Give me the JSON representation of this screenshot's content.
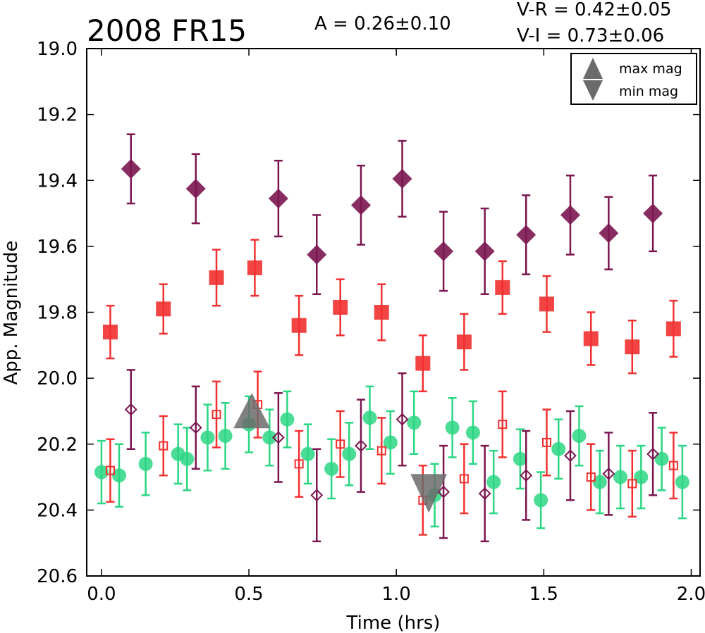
{
  "chart_data": {
    "type": "scatter",
    "title": "2008 FR15",
    "xlabel": "Time (hrs)",
    "ylabel": "App. Magnitude",
    "xlim": [
      -0.05,
      2.03
    ],
    "ylim": [
      20.6,
      19.0
    ],
    "y_inverted": true,
    "grid": false,
    "xticks": [
      "0.0",
      "0.5",
      "1.0",
      "1.5",
      "2.0"
    ],
    "xtick_values": [
      0.0,
      0.5,
      1.0,
      1.5,
      2.0
    ],
    "yticks": [
      "19.0",
      "19.2",
      "19.4",
      "19.6",
      "19.8",
      "20.0",
      "20.2",
      "20.4",
      "20.6"
    ],
    "ytick_values": [
      19.0,
      19.2,
      19.4,
      19.6,
      19.8,
      20.0,
      20.2,
      20.4,
      20.6
    ],
    "annotations": {
      "amplitude": "A  = 0.26±0.10",
      "v_r": "V-R = 0.42±0.05",
      "v_i": "V-I  = 0.73±0.06"
    },
    "legend": {
      "placement": "top-right",
      "entries": [
        {
          "label": "max mag",
          "marker": "triangle-up"
        },
        {
          "label": "min mag",
          "marker": "triangle-down"
        }
      ]
    },
    "series": [
      {
        "marker": "diamond",
        "filled": true,
        "color": "#7b1650",
        "points": [
          {
            "x": 0.1,
            "y": 19.365,
            "err": 0.105
          },
          {
            "x": 0.32,
            "y": 19.425,
            "err": 0.105
          },
          {
            "x": 0.6,
            "y": 19.455,
            "err": 0.115
          },
          {
            "x": 0.73,
            "y": 19.625,
            "err": 0.12
          },
          {
            "x": 0.88,
            "y": 19.475,
            "err": 0.12
          },
          {
            "x": 1.02,
            "y": 19.395,
            "err": 0.115
          },
          {
            "x": 1.16,
            "y": 19.615,
            "err": 0.12
          },
          {
            "x": 1.3,
            "y": 19.615,
            "err": 0.13
          },
          {
            "x": 1.44,
            "y": 19.565,
            "err": 0.12
          },
          {
            "x": 1.59,
            "y": 19.505,
            "err": 0.12
          },
          {
            "x": 1.72,
            "y": 19.56,
            "err": 0.11
          },
          {
            "x": 1.87,
            "y": 19.5,
            "err": 0.115
          }
        ]
      },
      {
        "marker": "square",
        "filled": true,
        "color": "#f23030",
        "points": [
          {
            "x": 0.03,
            "y": 19.86,
            "err": 0.08
          },
          {
            "x": 0.21,
            "y": 19.79,
            "err": 0.075
          },
          {
            "x": 0.39,
            "y": 19.695,
            "err": 0.085
          },
          {
            "x": 0.52,
            "y": 19.665,
            "err": 0.085
          },
          {
            "x": 0.67,
            "y": 19.84,
            "err": 0.09
          },
          {
            "x": 0.81,
            "y": 19.785,
            "err": 0.085
          },
          {
            "x": 0.95,
            "y": 19.8,
            "err": 0.085
          },
          {
            "x": 1.09,
            "y": 19.955,
            "err": 0.085
          },
          {
            "x": 1.23,
            "y": 19.89,
            "err": 0.085
          },
          {
            "x": 1.36,
            "y": 19.725,
            "err": 0.08
          },
          {
            "x": 1.51,
            "y": 19.775,
            "err": 0.085
          },
          {
            "x": 1.66,
            "y": 19.88,
            "err": 0.08
          },
          {
            "x": 1.8,
            "y": 19.905,
            "err": 0.08
          },
          {
            "x": 1.94,
            "y": 19.85,
            "err": 0.085
          }
        ]
      },
      {
        "marker": "circle",
        "filled": true,
        "color": "#2bd683",
        "points": [
          {
            "x": 0.0,
            "y": 20.285,
            "err": 0.095
          },
          {
            "x": 0.06,
            "y": 20.295,
            "err": 0.095
          },
          {
            "x": 0.15,
            "y": 20.26,
            "err": 0.095
          },
          {
            "x": 0.26,
            "y": 20.23,
            "err": 0.09
          },
          {
            "x": 0.29,
            "y": 20.245,
            "err": 0.095
          },
          {
            "x": 0.36,
            "y": 20.18,
            "err": 0.1
          },
          {
            "x": 0.42,
            "y": 20.175,
            "err": 0.1
          },
          {
            "x": 0.5,
            "y": 20.14,
            "err": 0.085
          },
          {
            "x": 0.57,
            "y": 20.18,
            "err": 0.085
          },
          {
            "x": 0.63,
            "y": 20.125,
            "err": 0.085
          },
          {
            "x": 0.7,
            "y": 20.23,
            "err": 0.09
          },
          {
            "x": 0.78,
            "y": 20.275,
            "err": 0.09
          },
          {
            "x": 0.84,
            "y": 20.23,
            "err": 0.095
          },
          {
            "x": 0.91,
            "y": 20.12,
            "err": 0.095
          },
          {
            "x": 0.98,
            "y": 20.195,
            "err": 0.095
          },
          {
            "x": 1.06,
            "y": 20.135,
            "err": 0.095
          },
          {
            "x": 1.13,
            "y": 20.355,
            "err": 0.095
          },
          {
            "x": 1.19,
            "y": 20.15,
            "err": 0.09
          },
          {
            "x": 1.26,
            "y": 20.165,
            "err": 0.095
          },
          {
            "x": 1.33,
            "y": 20.315,
            "err": 0.095
          },
          {
            "x": 1.42,
            "y": 20.245,
            "err": 0.09
          },
          {
            "x": 1.49,
            "y": 20.37,
            "err": 0.085
          },
          {
            "x": 1.55,
            "y": 20.215,
            "err": 0.09
          },
          {
            "x": 1.62,
            "y": 20.175,
            "err": 0.09
          },
          {
            "x": 1.69,
            "y": 20.315,
            "err": 0.095
          },
          {
            "x": 1.76,
            "y": 20.3,
            "err": 0.095
          },
          {
            "x": 1.83,
            "y": 20.3,
            "err": 0.095
          },
          {
            "x": 1.9,
            "y": 20.245,
            "err": 0.095
          },
          {
            "x": 1.97,
            "y": 20.315,
            "err": 0.11
          }
        ]
      },
      {
        "marker": "square",
        "filled": false,
        "color": "#f23030",
        "points": [
          {
            "x": 0.03,
            "y": 20.28,
            "err": 0.095
          },
          {
            "x": 0.21,
            "y": 20.205,
            "err": 0.09
          },
          {
            "x": 0.39,
            "y": 20.11,
            "err": 0.1
          },
          {
            "x": 0.53,
            "y": 20.08,
            "err": 0.1
          },
          {
            "x": 0.67,
            "y": 20.26,
            "err": 0.1
          },
          {
            "x": 0.81,
            "y": 20.2,
            "err": 0.1
          },
          {
            "x": 0.95,
            "y": 20.22,
            "err": 0.1
          },
          {
            "x": 1.09,
            "y": 20.37,
            "err": 0.105
          },
          {
            "x": 1.23,
            "y": 20.305,
            "err": 0.105
          },
          {
            "x": 1.36,
            "y": 20.14,
            "err": 0.1
          },
          {
            "x": 1.51,
            "y": 20.195,
            "err": 0.1
          },
          {
            "x": 1.66,
            "y": 20.3,
            "err": 0.1
          },
          {
            "x": 1.8,
            "y": 20.32,
            "err": 0.1
          },
          {
            "x": 1.94,
            "y": 20.265,
            "err": 0.1
          }
        ]
      },
      {
        "marker": "diamond",
        "filled": false,
        "color": "#7b1650",
        "points": [
          {
            "x": 0.1,
            "y": 20.095,
            "err": 0.12
          },
          {
            "x": 0.32,
            "y": 20.15,
            "err": 0.125
          },
          {
            "x": 0.6,
            "y": 20.18,
            "err": 0.135
          },
          {
            "x": 0.73,
            "y": 20.355,
            "err": 0.14
          },
          {
            "x": 0.88,
            "y": 20.205,
            "err": 0.14
          },
          {
            "x": 1.02,
            "y": 20.125,
            "err": 0.14
          },
          {
            "x": 1.16,
            "y": 20.345,
            "err": 0.14
          },
          {
            "x": 1.3,
            "y": 20.35,
            "err": 0.145
          },
          {
            "x": 1.44,
            "y": 20.295,
            "err": 0.135
          },
          {
            "x": 1.59,
            "y": 20.235,
            "err": 0.135
          },
          {
            "x": 1.72,
            "y": 20.29,
            "err": 0.125
          },
          {
            "x": 1.87,
            "y": 20.23,
            "err": 0.125
          }
        ]
      },
      {
        "marker": "triangle-up",
        "filled": true,
        "color": "#6b6b6b",
        "legend": "max mag",
        "points": [
          {
            "x": 0.51,
            "y": 20.12
          }
        ]
      },
      {
        "marker": "triangle-down",
        "filled": true,
        "color": "#6b6b6b",
        "legend": "min mag",
        "points": [
          {
            "x": 1.11,
            "y": 20.355
          }
        ]
      }
    ]
  }
}
